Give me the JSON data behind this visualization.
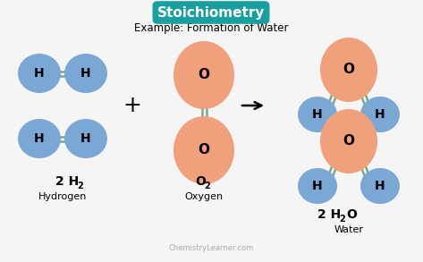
{
  "title": "Stoichiometry",
  "title_bg": "#1a9fa0",
  "subtitle": "Example: Formation of Water",
  "bg_color": "#f5f5f5",
  "h_color": "#7ba7d4",
  "o_color": "#f0a07a",
  "bond_color": "#7aaa88",
  "label_h2": "2 H",
  "label_h2_sub": "2",
  "label_o2": "O",
  "label_o2_sub": "2",
  "label_h2o": "2 H",
  "label_h2o_sub": "2",
  "label_h2o_suf": "O",
  "sublabel_h2": "Hydrogen",
  "sublabel_o2": "Oxygen",
  "sublabel_h2o": "Water",
  "watermark": "ChemistryLearner.com"
}
